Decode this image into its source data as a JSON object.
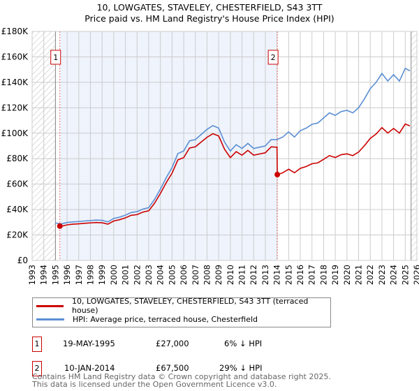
{
  "title": "10, LOWGATES, STAVELEY, CHESTERFIELD, S43 3TT",
  "subtitle": "Price paid vs. HM Land Registry's House Price Index (HPI)",
  "chart_data": {
    "type": "line",
    "title": "10, LOWGATES, STAVELEY, CHESTERFIELD, S43 3TT",
    "subtitle": "Price paid vs. HM Land Registry's House Price Index (HPI)",
    "xlim": [
      1993,
      2026
    ],
    "ylim": [
      0,
      180000
    ],
    "x_ticks": [
      "1993",
      "1994",
      "1995",
      "1996",
      "1997",
      "1998",
      "1999",
      "2000",
      "2001",
      "2002",
      "2003",
      "2004",
      "2005",
      "2006",
      "2007",
      "2008",
      "2009",
      "2010",
      "2011",
      "2012",
      "2013",
      "2014",
      "2015",
      "2016",
      "2017",
      "2018",
      "2019",
      "2020",
      "2021",
      "2022",
      "2023",
      "2024",
      "2025",
      "2026"
    ],
    "y_ticks": [
      {
        "v": 0,
        "label": "£0"
      },
      {
        "v": 20000,
        "label": "£20K"
      },
      {
        "v": 40000,
        "label": "£40K"
      },
      {
        "v": 60000,
        "label": "£60K"
      },
      {
        "v": 80000,
        "label": "£80K"
      },
      {
        "v": 100000,
        "label": "£100K"
      },
      {
        "v": 120000,
        "label": "£120K"
      },
      {
        "v": 140000,
        "label": "£140K"
      },
      {
        "v": 160000,
        "label": "£160K"
      },
      {
        "v": 180000,
        "label": "£180K"
      }
    ],
    "grid": true,
    "hatched_before": 1995.0,
    "hatched_after": 2025.5,
    "shaded_between": [
      1995.38,
      2014.03
    ],
    "series": [
      {
        "name": "10, LOWGATES, STAVELEY, CHESTERFIELD, S43 3TT (terraced house)",
        "color": "#cc0000",
        "x": [
          1995.38,
          1995.5,
          1996,
          1996.5,
          1997,
          1997.5,
          1998,
          1998.5,
          1999,
          1999.5,
          2000,
          2000.5,
          2001,
          2001.5,
          2002,
          2002.5,
          2003,
          2003.5,
          2004,
          2004.5,
          2005,
          2005.5,
          2006,
          2006.5,
          2007,
          2007.5,
          2008,
          2008.5,
          2009,
          2009.5,
          2010,
          2010.5,
          2011,
          2011.5,
          2012,
          2012.5,
          2013,
          2013.5,
          2014.0,
          2014.03,
          2014.5,
          2015,
          2015.5,
          2016,
          2016.5,
          2017,
          2017.5,
          2018,
          2018.5,
          2019,
          2019.5,
          2020,
          2020.5,
          2021,
          2021.5,
          2022,
          2022.5,
          2023,
          2023.5,
          2024,
          2024.5,
          2025,
          2025.4
        ],
        "y": [
          27000,
          26800,
          28000,
          28500,
          28800,
          29200,
          29500,
          29800,
          29600,
          28500,
          31000,
          32000,
          33500,
          35500,
          36000,
          38000,
          39000,
          45000,
          52600,
          61100,
          68600,
          79000,
          80800,
          88400,
          89300,
          93100,
          96800,
          99600,
          97800,
          87400,
          80800,
          85500,
          82700,
          86500,
          82700,
          83700,
          84600,
          89300,
          89000,
          67500,
          68900,
          71700,
          68900,
          72400,
          73800,
          76000,
          76700,
          79500,
          82400,
          80900,
          83100,
          83800,
          82400,
          85200,
          90200,
          95900,
          99400,
          104400,
          100100,
          103700,
          100100,
          107200,
          105800
        ]
      },
      {
        "name": "HPI: Average price, terraced house, Chesterfield",
        "color": "#5b8fd4",
        "x": [
          1995.0,
          1995.5,
          1996,
          1996.5,
          1997,
          1997.5,
          1998,
          1998.5,
          1999,
          1999.5,
          2000,
          2000.5,
          2001,
          2001.5,
          2002,
          2002.5,
          2003,
          2003.5,
          2004,
          2004.5,
          2005,
          2005.5,
          2006,
          2006.5,
          2007,
          2007.5,
          2008,
          2008.5,
          2009,
          2009.5,
          2010,
          2010.5,
          2011,
          2011.5,
          2012,
          2012.5,
          2013,
          2013.5,
          2014,
          2014.5,
          2015,
          2015.5,
          2016,
          2016.5,
          2017,
          2017.5,
          2018,
          2018.5,
          2019,
          2019.5,
          2020,
          2020.5,
          2021,
          2021.5,
          2022,
          2022.5,
          2023,
          2023.5,
          2024,
          2024.5,
          2025,
          2025.4
        ],
        "y": [
          29500,
          28700,
          29800,
          30300,
          30600,
          31000,
          31300,
          31700,
          31500,
          30300,
          33000,
          34000,
          35600,
          37700,
          38300,
          40400,
          41500,
          48000,
          56000,
          65000,
          73000,
          84000,
          86000,
          94000,
          95000,
          99000,
          103000,
          106000,
          104000,
          93000,
          86000,
          91000,
          88000,
          92000,
          88000,
          89000,
          90000,
          95000,
          95000,
          97000,
          101000,
          97000,
          102000,
          104000,
          107000,
          108000,
          112000,
          116000,
          114000,
          117000,
          118000,
          116000,
          120000,
          127000,
          135000,
          140000,
          147000,
          141000,
          146000,
          141000,
          151000,
          149000
        ]
      }
    ],
    "markers": [
      {
        "label": "1",
        "x": 1995.38,
        "y": 27000
      },
      {
        "label": "2",
        "x": 2014.03,
        "y": 67500
      }
    ]
  },
  "legend": {
    "items": [
      {
        "label": "10, LOWGATES, STAVELEY, CHESTERFIELD, S43 3TT (terraced house)",
        "color": "#cc0000"
      },
      {
        "label": "HPI: Average price, terraced house, Chesterfield",
        "color": "#5b8fd4"
      }
    ]
  },
  "sales": [
    {
      "num": "1",
      "date": "19-MAY-1995",
      "price": "£27,000",
      "hpi": "6% ↓ HPI"
    },
    {
      "num": "2",
      "date": "10-JAN-2014",
      "price": "£67,500",
      "hpi": "29% ↓ HPI"
    }
  ],
  "footer": {
    "line1": "Contains HM Land Registry data © Crown copyright and database right 2025.",
    "line2": "This data is licensed under the Open Government Licence v3.0."
  }
}
